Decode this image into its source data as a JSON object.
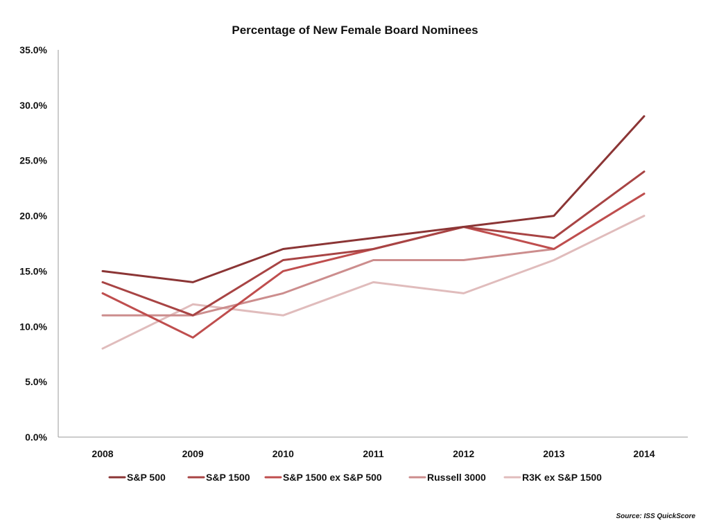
{
  "chart_data": {
    "type": "line",
    "title": "Percentage of New Female Board Nominees",
    "categories": [
      "2008",
      "2009",
      "2010",
      "2011",
      "2012",
      "2013",
      "2014"
    ],
    "y_tick_labels": [
      "0.0%",
      "5.0%",
      "10.0%",
      "15.0%",
      "20.0%",
      "25.0%",
      "30.0%",
      "35.0%"
    ],
    "ylim": [
      0,
      35
    ],
    "grid": false,
    "legend_position": "bottom",
    "series": [
      {
        "name": "S&P 500",
        "color": "#8b3535",
        "values": [
          15,
          14,
          17,
          18,
          19,
          20,
          29
        ]
      },
      {
        "name": "S&P 1500",
        "color": "#a84444",
        "values": [
          14,
          11,
          16,
          17,
          19,
          18,
          24
        ]
      },
      {
        "name": "S&P 1500 ex S&P 500",
        "color": "#bf4e4e",
        "values": [
          13,
          9,
          15,
          17,
          19,
          17,
          22
        ]
      },
      {
        "name": "Russell 3000",
        "color": "#cc8d8d",
        "values": [
          11,
          11,
          13,
          16,
          16,
          17,
          22
        ]
      },
      {
        "name": "R3K ex S&P 1500",
        "color": "#e0bcbc",
        "values": [
          8,
          12,
          11,
          14,
          13,
          16,
          20
        ]
      }
    ],
    "source": "Source: ISS QuickScore"
  }
}
